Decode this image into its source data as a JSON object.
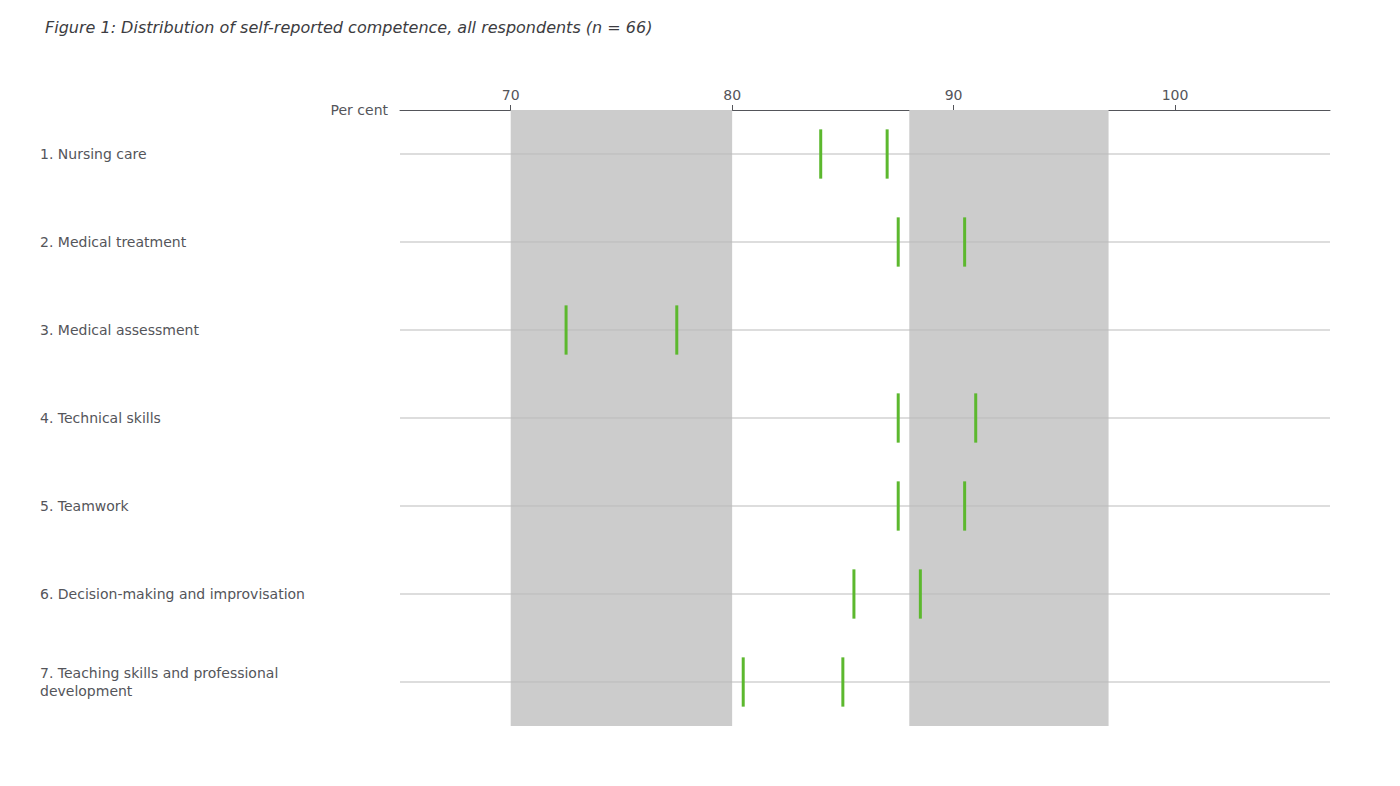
{
  "chart_data": {
    "type": "range",
    "orientation": "horizontal",
    "title": "Figure 1: Distribution of self-reported competence, all respondents (n = 66)",
    "xlabel": "Per cent",
    "categories": [
      "1. Nursing care",
      "2. Medical treatment",
      "3. Medical assessment",
      "4. Technical skills",
      "5. Teamwork",
      "6. Decision-making and improvisation",
      "7. Teaching skills and professional\ndevelopment"
    ],
    "values": [
      [
        84.0,
        87.0
      ],
      [
        87.5,
        90.5
      ],
      [
        72.5,
        77.5
      ],
      [
        87.5,
        91.0
      ],
      [
        87.5,
        90.5
      ],
      [
        85.5,
        88.5
      ],
      [
        80.5,
        85.0
      ]
    ],
    "color": "#5cb82e",
    "bands": [
      {
        "from": 70,
        "to": 80,
        "color": "#cccccc"
      },
      {
        "from": 88,
        "to": 97,
        "color": "#cccccc"
      }
    ],
    "xlim": [
      65,
      107
    ],
    "xticks": [
      70,
      80,
      90,
      100
    ],
    "grid": true
  }
}
